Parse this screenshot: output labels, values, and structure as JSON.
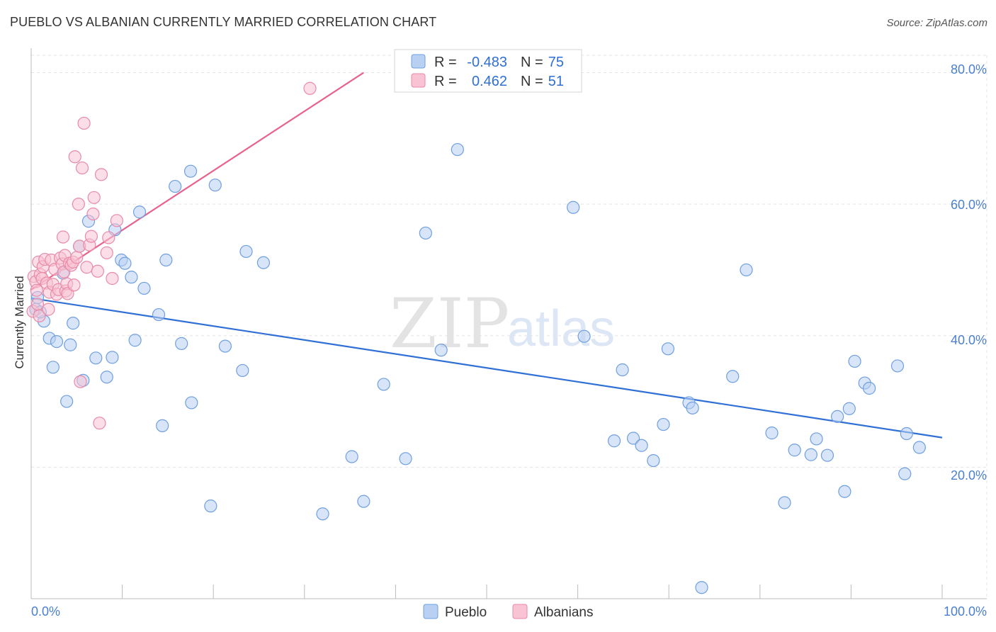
{
  "header": {
    "title": "PUEBLO VS ALBANIAN CURRENTLY MARRIED CORRELATION CHART",
    "source": "Source: ZipAtlas.com"
  },
  "watermark": {
    "zip": "ZIP",
    "atlas": "atlas"
  },
  "colors": {
    "pueblo_fill": "#b8d0f2",
    "pueblo_stroke": "#6f9fe0",
    "pueblo_line": "#2f6fd6",
    "albanian_fill": "#f8c3d3",
    "albanian_stroke": "#e88aa8",
    "albanian_line": "#e8628c",
    "grid": "#e4e4e4",
    "tick_text": "#4a7fd0"
  },
  "legend": {
    "rows": [
      {
        "r_label": "R =",
        "r_value": "-0.483",
        "n_label": "N =",
        "n_value": "75"
      },
      {
        "r_label": "R =",
        "r_value": "0.462",
        "n_label": "N =",
        "n_value": "51"
      }
    ]
  },
  "chart_data": {
    "type": "scatter",
    "title": "PUEBLO VS ALBANIAN CURRENTLY MARRIED CORRELATION CHART",
    "xlabel": "",
    "ylabel": "Currently Married",
    "xlim": [
      0,
      100
    ],
    "ylim": [
      0,
      83.5
    ],
    "x_tick_labels": [
      "0.0%",
      "100.0%"
    ],
    "y_ticks": [
      20,
      40,
      60,
      80
    ],
    "y_tick_labels": [
      "20.0%",
      "40.0%",
      "60.0%",
      "80.0%"
    ],
    "grid": true,
    "legend_position": "top-center",
    "series": [
      {
        "name": "Pueblo",
        "r": -0.483,
        "n": 75,
        "trend": {
          "x": [
            0,
            100
          ],
          "y": [
            45.7,
            24.5
          ]
        },
        "points": [
          [
            0.7,
            45.8
          ],
          [
            1.4,
            42.2
          ],
          [
            2.0,
            39.6
          ],
          [
            2.4,
            35.2
          ],
          [
            2.8,
            39.1
          ],
          [
            3.5,
            49.5
          ],
          [
            3.9,
            30.0
          ],
          [
            4.3,
            38.6
          ],
          [
            4.6,
            41.9
          ],
          [
            5.3,
            53.6
          ],
          [
            5.7,
            33.2
          ],
          [
            6.3,
            57.4
          ],
          [
            7.1,
            36.6
          ],
          [
            8.3,
            33.7
          ],
          [
            8.9,
            36.7
          ],
          [
            9.2,
            56.1
          ],
          [
            9.9,
            51.5
          ],
          [
            10.3,
            51.0
          ],
          [
            11.0,
            48.9
          ],
          [
            11.4,
            39.3
          ],
          [
            11.9,
            58.8
          ],
          [
            12.4,
            47.2
          ],
          [
            14.0,
            43.2
          ],
          [
            14.4,
            26.3
          ],
          [
            14.8,
            51.5
          ],
          [
            15.8,
            62.7
          ],
          [
            16.5,
            38.8
          ],
          [
            17.5,
            65.0
          ],
          [
            17.6,
            29.8
          ],
          [
            19.7,
            14.1
          ],
          [
            20.2,
            62.9
          ],
          [
            21.3,
            38.4
          ],
          [
            23.2,
            34.7
          ],
          [
            23.6,
            52.8
          ],
          [
            25.5,
            51.1
          ],
          [
            32.0,
            12.9
          ],
          [
            35.2,
            21.6
          ],
          [
            36.5,
            14.8
          ],
          [
            38.7,
            32.6
          ],
          [
            41.1,
            21.3
          ],
          [
            43.3,
            55.6
          ],
          [
            45.0,
            37.8
          ],
          [
            46.8,
            68.3
          ],
          [
            59.5,
            59.5
          ],
          [
            60.7,
            39.9
          ],
          [
            64.0,
            24.0
          ],
          [
            64.9,
            34.8
          ],
          [
            66.1,
            24.4
          ],
          [
            67.0,
            23.3
          ],
          [
            68.3,
            21.0
          ],
          [
            69.4,
            26.5
          ],
          [
            69.9,
            38.0
          ],
          [
            72.2,
            29.8
          ],
          [
            72.6,
            29.0
          ],
          [
            73.6,
            1.7
          ],
          [
            77.0,
            33.8
          ],
          [
            78.5,
            50.0
          ],
          [
            81.3,
            25.2
          ],
          [
            82.7,
            14.6
          ],
          [
            83.8,
            22.6
          ],
          [
            85.6,
            21.9
          ],
          [
            86.2,
            24.3
          ],
          [
            87.4,
            21.8
          ],
          [
            88.5,
            27.7
          ],
          [
            89.3,
            16.3
          ],
          [
            89.8,
            28.9
          ],
          [
            90.4,
            36.1
          ],
          [
            91.5,
            32.8
          ],
          [
            92.0,
            32.0
          ],
          [
            95.1,
            35.4
          ],
          [
            95.9,
            19.0
          ],
          [
            96.1,
            25.1
          ],
          [
            97.5,
            23.0
          ],
          [
            0.5,
            44.0
          ],
          [
            1.0,
            43.6
          ]
        ]
      },
      {
        "name": "Albanians",
        "r": 0.462,
        "n": 51,
        "trend": {
          "x": [
            0,
            36.5
          ],
          "y": [
            47.0,
            80.0
          ]
        },
        "points": [
          [
            0.2,
            43.7
          ],
          [
            0.3,
            49.0
          ],
          [
            0.5,
            48.2
          ],
          [
            0.6,
            46.9
          ],
          [
            0.7,
            44.8
          ],
          [
            0.8,
            51.2
          ],
          [
            0.9,
            43.0
          ],
          [
            1.0,
            49.3
          ],
          [
            1.2,
            48.7
          ],
          [
            1.3,
            50.5
          ],
          [
            1.5,
            51.6
          ],
          [
            1.7,
            48.0
          ],
          [
            1.9,
            44.0
          ],
          [
            2.0,
            46.6
          ],
          [
            2.2,
            51.5
          ],
          [
            2.4,
            47.8
          ],
          [
            2.6,
            50.1
          ],
          [
            2.8,
            46.3
          ],
          [
            3.0,
            47.0
          ],
          [
            3.2,
            51.8
          ],
          [
            3.4,
            50.9
          ],
          [
            3.5,
            55.0
          ],
          [
            3.6,
            49.7
          ],
          [
            3.7,
            52.2
          ],
          [
            3.8,
            46.8
          ],
          [
            3.9,
            47.9
          ],
          [
            4.0,
            46.4
          ],
          [
            4.2,
            51.0
          ],
          [
            4.4,
            50.7
          ],
          [
            4.6,
            51.2
          ],
          [
            4.7,
            47.7
          ],
          [
            4.8,
            67.2
          ],
          [
            5.0,
            51.9
          ],
          [
            5.2,
            60.0
          ],
          [
            5.3,
            53.6
          ],
          [
            5.4,
            33.0
          ],
          [
            5.6,
            65.5
          ],
          [
            5.8,
            72.3
          ],
          [
            6.1,
            50.4
          ],
          [
            6.4,
            53.8
          ],
          [
            6.6,
            55.1
          ],
          [
            6.8,
            58.5
          ],
          [
            6.9,
            61.0
          ],
          [
            7.3,
            49.8
          ],
          [
            7.5,
            26.7
          ],
          [
            7.7,
            64.5
          ],
          [
            8.3,
            52.6
          ],
          [
            8.5,
            54.9
          ],
          [
            8.9,
            48.7
          ],
          [
            9.4,
            57.5
          ],
          [
            30.6,
            77.6
          ]
        ]
      }
    ]
  },
  "bottom_legend": {
    "items": [
      "Pueblo",
      "Albanians"
    ]
  }
}
